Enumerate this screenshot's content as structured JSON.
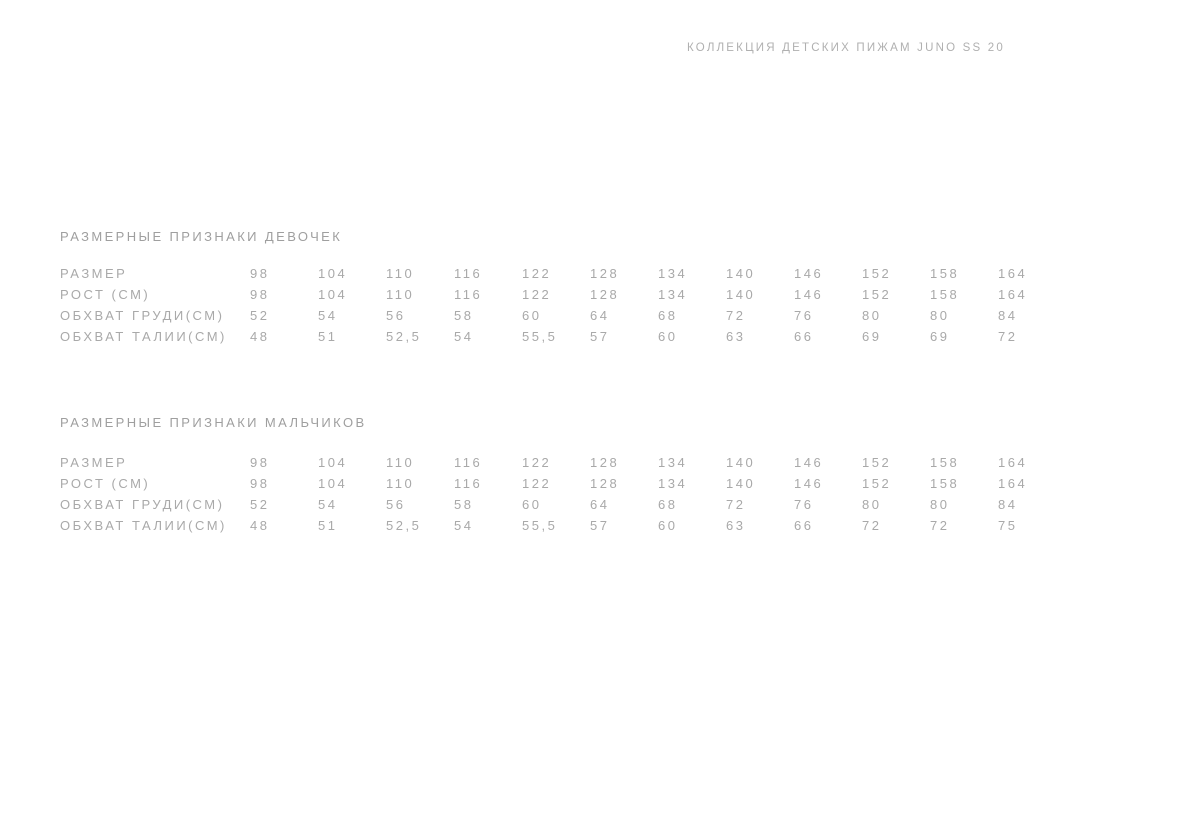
{
  "header": {
    "title": "КОЛЛЕКЦИЯ ДЕТСКИХ ПИЖАМ JUNO SS 20"
  },
  "colors": {
    "background": "#ffffff",
    "body_text": "#a9a9a9",
    "section_title_text": "#9f9f9f",
    "header_text": "#b0b0b0"
  },
  "tables": [
    {
      "id": "girls",
      "title": "РАЗМЕРНЫЕ ПРИЗНАКИ ДЕВОЧЕК",
      "rows": [
        {
          "label": "РАЗМЕР",
          "values": [
            "98",
            "104",
            "110",
            "116",
            "122",
            "128",
            "134",
            "140",
            "146",
            "152",
            "158",
            "164"
          ]
        },
        {
          "label": "РОСТ (СМ)",
          "values": [
            "98",
            "104",
            "110",
            "116",
            "122",
            "128",
            "134",
            "140",
            "146",
            "152",
            "158",
            "164"
          ]
        },
        {
          "label": "ОБХВАТ ГРУДИ(СМ)",
          "values": [
            "52",
            "54",
            "56",
            "58",
            "60",
            "64",
            "68",
            "72",
            "76",
            "80",
            "80",
            "84"
          ]
        },
        {
          "label": "ОБХВАТ ТАЛИИ(СМ)",
          "values": [
            "48",
            "51",
            "52,5",
            "54",
            "55,5",
            "57",
            "60",
            "63",
            "66",
            "69",
            "69",
            "72"
          ]
        }
      ]
    },
    {
      "id": "boys",
      "title": "РАЗМЕРНЫЕ ПРИЗНАКИ МАЛЬЧИКОВ",
      "rows": [
        {
          "label": "РАЗМЕР",
          "values": [
            "98",
            "104",
            "110",
            "116",
            "122",
            "128",
            "134",
            "140",
            "146",
            "152",
            "158",
            "164"
          ]
        },
        {
          "label": "РОСТ (СМ)",
          "values": [
            "98",
            "104",
            "110",
            "116",
            "122",
            "128",
            "134",
            "140",
            "146",
            "152",
            "158",
            "164"
          ]
        },
        {
          "label": "ОБХВАТ ГРУДИ(СМ)",
          "values": [
            "52",
            "54",
            "56",
            "58",
            "60",
            "64",
            "68",
            "72",
            "76",
            "80",
            "80",
            "84"
          ]
        },
        {
          "label": "ОБХВАТ ТАЛИИ(СМ)",
          "values": [
            "48",
            "51",
            "52,5",
            "54",
            "55,5",
            "57",
            "60",
            "63",
            "66",
            "72",
            "72",
            "75"
          ]
        }
      ]
    }
  ]
}
